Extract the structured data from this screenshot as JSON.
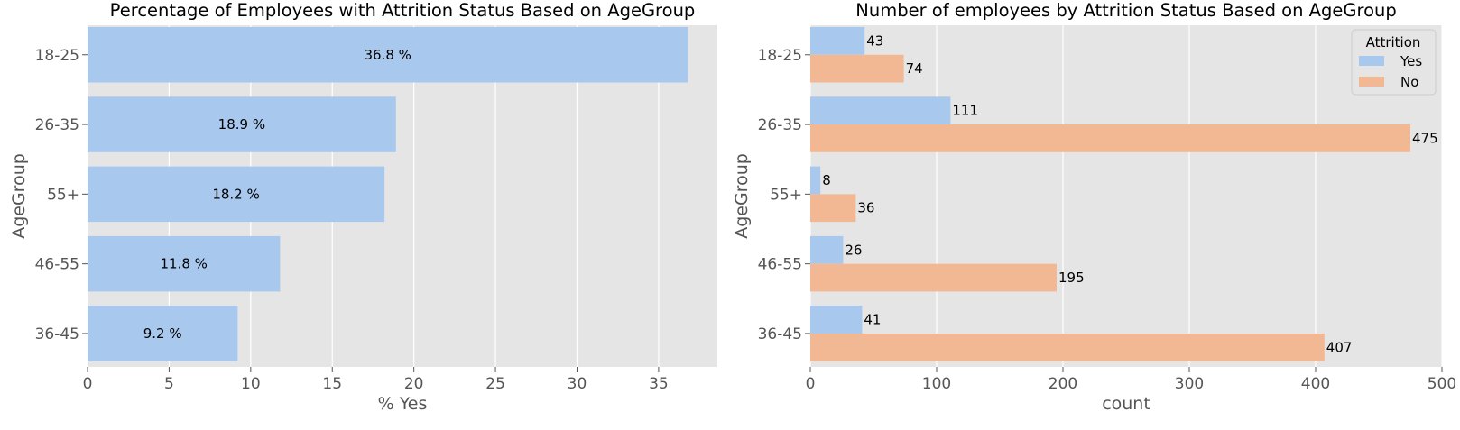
{
  "colors": {
    "yes": "#a8c8ee",
    "no": "#f2b893",
    "panel_bg": "#e5e5e5",
    "grid": "#ffffff"
  },
  "chart_data": [
    {
      "type": "bar",
      "orientation": "horizontal",
      "title": "Percentage of Employees with Attrition Status Based on AgeGroup",
      "xlabel": "% Yes",
      "ylabel": "AgeGroup",
      "categories": [
        "18-25",
        "26-35",
        "55+",
        "46-55",
        "36-45"
      ],
      "values": [
        36.8,
        18.9,
        18.2,
        11.8,
        9.2
      ],
      "data_labels": [
        "36.8 %",
        "18.9 %",
        "18.2 %",
        "11.8 %",
        "9.2 %"
      ],
      "xlim": [
        0,
        38.6
      ],
      "xticks": [
        0,
        5,
        10,
        15,
        20,
        25,
        30,
        35
      ],
      "grid": true
    },
    {
      "type": "bar",
      "orientation": "horizontal",
      "title": "Number of employees by Attrition Status Based on AgeGroup",
      "xlabel": "count",
      "ylabel": "AgeGroup",
      "categories": [
        "18-25",
        "26-35",
        "55+",
        "46-55",
        "36-45"
      ],
      "series": [
        {
          "name": "Yes",
          "values": [
            43,
            111,
            8,
            26,
            41
          ]
        },
        {
          "name": "No",
          "values": [
            74,
            475,
            36,
            195,
            407
          ]
        }
      ],
      "xlim": [
        0,
        500
      ],
      "xticks": [
        0,
        100,
        200,
        300,
        400,
        500
      ],
      "legend": {
        "title": "Attrition",
        "placement": "top-right"
      },
      "grid": true
    }
  ]
}
